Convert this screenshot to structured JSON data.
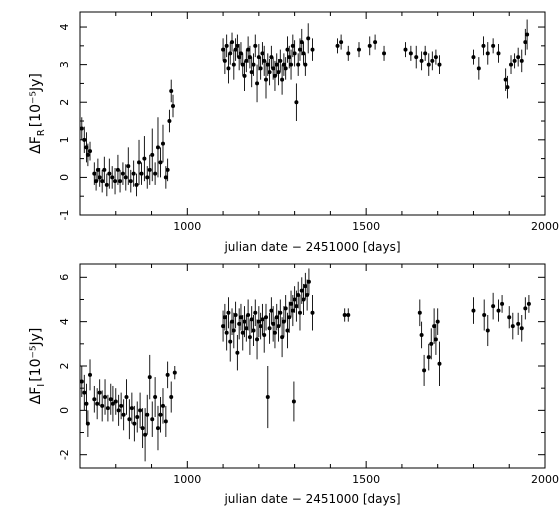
{
  "chart_data": [
    {
      "type": "scatter",
      "ylabel": "ΔF",
      "ylabel_sub": "R",
      "ylabel_unit": "[10⁻⁵Jy]",
      "xlabel": "julian date − 2451000 [days]",
      "xlim": [
        700,
        2000
      ],
      "ylim": [
        -1,
        4.4
      ],
      "xticks": [
        1000,
        1500,
        2000
      ],
      "yticks": [
        -1,
        0,
        1,
        2,
        3,
        4
      ],
      "points": [
        [
          705,
          1.3,
          0.3
        ],
        [
          712,
          1.0,
          0.35
        ],
        [
          718,
          0.8,
          0.4
        ],
        [
          722,
          0.6,
          0.3
        ],
        [
          728,
          0.7,
          0.25
        ],
        [
          740,
          0.1,
          0.3
        ],
        [
          745,
          -0.1,
          0.25
        ],
        [
          750,
          0.2,
          0.3
        ],
        [
          755,
          0.0,
          0.25
        ],
        [
          762,
          -0.1,
          0.3
        ],
        [
          768,
          0.2,
          0.35
        ],
        [
          775,
          -0.2,
          0.3
        ],
        [
          782,
          0.1,
          0.4
        ],
        [
          790,
          0.0,
          0.3
        ],
        [
          798,
          -0.1,
          0.35
        ],
        [
          806,
          0.2,
          0.4
        ],
        [
          812,
          -0.1,
          0.3
        ],
        [
          820,
          0.1,
          0.3
        ],
        [
          828,
          0.0,
          0.35
        ],
        [
          835,
          0.3,
          0.5
        ],
        [
          842,
          -0.1,
          0.3
        ],
        [
          850,
          0.1,
          0.35
        ],
        [
          858,
          -0.2,
          0.3
        ],
        [
          865,
          0.4,
          0.6
        ],
        [
          872,
          0.1,
          0.3
        ],
        [
          880,
          0.5,
          0.6
        ],
        [
          888,
          0.0,
          0.3
        ],
        [
          895,
          0.2,
          0.4
        ],
        [
          902,
          0.6,
          0.7
        ],
        [
          910,
          0.1,
          0.3
        ],
        [
          918,
          0.8,
          0.8
        ],
        [
          925,
          0.4,
          0.4
        ],
        [
          932,
          0.9,
          0.5
        ],
        [
          940,
          0.0,
          0.3
        ],
        [
          945,
          0.2,
          0.3
        ],
        [
          950,
          1.5,
          0.3
        ],
        [
          955,
          2.3,
          0.3
        ],
        [
          960,
          1.9,
          0.3
        ],
        [
          1100,
          3.4,
          0.3
        ],
        [
          1105,
          3.1,
          0.35
        ],
        [
          1110,
          3.5,
          0.3
        ],
        [
          1115,
          2.9,
          0.4
        ],
        [
          1120,
          3.3,
          0.3
        ],
        [
          1125,
          3.6,
          0.25
        ],
        [
          1130,
          3.0,
          0.4
        ],
        [
          1135,
          3.4,
          0.3
        ],
        [
          1140,
          3.5,
          0.3
        ],
        [
          1145,
          3.2,
          0.35
        ],
        [
          1150,
          3.3,
          0.3
        ],
        [
          1155,
          3.0,
          0.3
        ],
        [
          1160,
          2.7,
          0.4
        ],
        [
          1165,
          3.1,
          0.3
        ],
        [
          1170,
          3.4,
          0.35
        ],
        [
          1175,
          3.2,
          0.3
        ],
        [
          1180,
          2.8,
          0.4
        ],
        [
          1185,
          3.0,
          0.3
        ],
        [
          1190,
          3.5,
          0.3
        ],
        [
          1195,
          2.5,
          0.5
        ],
        [
          1200,
          3.2,
          0.35
        ],
        [
          1205,
          2.9,
          0.3
        ],
        [
          1210,
          3.3,
          0.3
        ],
        [
          1215,
          3.1,
          0.4
        ],
        [
          1220,
          2.6,
          0.5
        ],
        [
          1225,
          3.0,
          0.3
        ],
        [
          1230,
          2.8,
          0.35
        ],
        [
          1235,
          3.2,
          0.3
        ],
        [
          1240,
          2.9,
          0.3
        ],
        [
          1245,
          2.7,
          0.4
        ],
        [
          1250,
          3.0,
          0.3
        ],
        [
          1255,
          2.8,
          0.35
        ],
        [
          1260,
          3.1,
          0.3
        ],
        [
          1265,
          2.6,
          0.4
        ],
        [
          1270,
          3.0,
          0.3
        ],
        [
          1275,
          2.9,
          0.3
        ],
        [
          1280,
          3.4,
          0.35
        ],
        [
          1285,
          3.2,
          0.3
        ],
        [
          1290,
          3.0,
          0.4
        ],
        [
          1295,
          3.5,
          0.3
        ],
        [
          1300,
          3.3,
          0.35
        ],
        [
          1305,
          2.0,
          0.5
        ],
        [
          1310,
          3.0,
          0.3
        ],
        [
          1315,
          3.4,
          0.3
        ],
        [
          1320,
          3.6,
          0.35
        ],
        [
          1325,
          3.3,
          0.3
        ],
        [
          1330,
          3.0,
          0.3
        ],
        [
          1338,
          3.7,
          0.4
        ],
        [
          1350,
          3.4,
          0.3
        ],
        [
          1420,
          3.5,
          0.2
        ],
        [
          1430,
          3.6,
          0.2
        ],
        [
          1450,
          3.3,
          0.2
        ],
        [
          1480,
          3.4,
          0.2
        ],
        [
          1510,
          3.5,
          0.25
        ],
        [
          1525,
          3.6,
          0.2
        ],
        [
          1550,
          3.3,
          0.2
        ],
        [
          1610,
          3.4,
          0.2
        ],
        [
          1625,
          3.3,
          0.2
        ],
        [
          1640,
          3.2,
          0.3
        ],
        [
          1655,
          3.1,
          0.25
        ],
        [
          1665,
          3.3,
          0.2
        ],
        [
          1675,
          3.0,
          0.3
        ],
        [
          1685,
          3.1,
          0.25
        ],
        [
          1695,
          3.2,
          0.2
        ],
        [
          1705,
          3.0,
          0.25
        ],
        [
          1800,
          3.2,
          0.2
        ],
        [
          1815,
          2.9,
          0.3
        ],
        [
          1828,
          3.5,
          0.25
        ],
        [
          1840,
          3.3,
          0.3
        ],
        [
          1855,
          3.5,
          0.2
        ],
        [
          1870,
          3.3,
          0.25
        ],
        [
          1890,
          2.6,
          0.3
        ],
        [
          1895,
          2.4,
          0.3
        ],
        [
          1905,
          3.0,
          0.25
        ],
        [
          1915,
          3.1,
          0.2
        ],
        [
          1925,
          3.2,
          0.25
        ],
        [
          1935,
          3.1,
          0.3
        ],
        [
          1945,
          3.6,
          0.35
        ],
        [
          1950,
          3.8,
          0.4
        ]
      ]
    },
    {
      "type": "scatter",
      "ylabel": "ΔF",
      "ylabel_sub": "I",
      "ylabel_unit": "[10⁻⁵Jy]",
      "xlabel": "julian date − 2451000 [days]",
      "xlim": [
        700,
        2000
      ],
      "ylim": [
        -2.6,
        6.6
      ],
      "xticks": [
        1000,
        1500,
        2000
      ],
      "yticks": [
        -2,
        0,
        2,
        4,
        6
      ],
      "points": [
        [
          705,
          1.3,
          0.7
        ],
        [
          712,
          0.8,
          0.8
        ],
        [
          718,
          0.3,
          0.9
        ],
        [
          722,
          -0.6,
          0.6
        ],
        [
          728,
          1.6,
          0.7
        ],
        [
          740,
          0.5,
          0.6
        ],
        [
          748,
          0.3,
          0.7
        ],
        [
          755,
          0.8,
          0.6
        ],
        [
          762,
          0.2,
          0.7
        ],
        [
          770,
          0.6,
          0.8
        ],
        [
          778,
          0.1,
          0.6
        ],
        [
          786,
          0.5,
          0.7
        ],
        [
          792,
          0.3,
          0.8
        ],
        [
          800,
          0.4,
          0.6
        ],
        [
          808,
          0.0,
          0.7
        ],
        [
          815,
          0.2,
          0.6
        ],
        [
          822,
          -0.2,
          0.7
        ],
        [
          830,
          0.6,
          0.8
        ],
        [
          838,
          -0.4,
          0.9
        ],
        [
          845,
          0.1,
          0.7
        ],
        [
          852,
          -0.6,
          0.8
        ],
        [
          860,
          -0.3,
          0.7
        ],
        [
          868,
          0.0,
          0.8
        ],
        [
          875,
          -0.8,
          0.9
        ],
        [
          882,
          -1.1,
          1.2
        ],
        [
          888,
          -0.2,
          0.9
        ],
        [
          895,
          1.5,
          1.0
        ],
        [
          902,
          -0.4,
          0.8
        ],
        [
          910,
          0.6,
          0.9
        ],
        [
          918,
          -0.8,
          1.0
        ],
        [
          925,
          -0.2,
          0.8
        ],
        [
          932,
          0.2,
          0.8
        ],
        [
          940,
          -0.5,
          0.7
        ],
        [
          945,
          1.6,
          0.6
        ],
        [
          955,
          0.6,
          0.7
        ],
        [
          965,
          1.7,
          0.3
        ],
        [
          1100,
          3.8,
          0.7
        ],
        [
          1105,
          4.2,
          0.6
        ],
        [
          1110,
          3.5,
          0.8
        ],
        [
          1115,
          4.4,
          0.7
        ],
        [
          1120,
          3.1,
          0.9
        ],
        [
          1125,
          4.0,
          0.6
        ],
        [
          1130,
          3.6,
          0.8
        ],
        [
          1135,
          4.3,
          0.6
        ],
        [
          1140,
          2.6,
          0.8
        ],
        [
          1145,
          3.9,
          0.7
        ],
        [
          1150,
          4.2,
          0.6
        ],
        [
          1155,
          3.5,
          0.8
        ],
        [
          1160,
          4.0,
          0.7
        ],
        [
          1165,
          3.7,
          0.6
        ],
        [
          1170,
          4.3,
          0.7
        ],
        [
          1175,
          3.3,
          0.8
        ],
        [
          1180,
          4.1,
          0.6
        ],
        [
          1185,
          3.6,
          0.7
        ],
        [
          1190,
          4.4,
          0.6
        ],
        [
          1195,
          3.2,
          0.9
        ],
        [
          1200,
          4.0,
          0.7
        ],
        [
          1205,
          3.8,
          0.6
        ],
        [
          1210,
          4.1,
          0.7
        ],
        [
          1215,
          3.4,
          0.8
        ],
        [
          1220,
          4.2,
          0.6
        ],
        [
          1225,
          0.6,
          1.4
        ],
        [
          1230,
          3.7,
          0.7
        ],
        [
          1235,
          4.5,
          0.6
        ],
        [
          1240,
          3.9,
          0.8
        ],
        [
          1245,
          3.5,
          0.7
        ],
        [
          1250,
          4.2,
          0.6
        ],
        [
          1255,
          3.8,
          0.7
        ],
        [
          1260,
          4.4,
          0.6
        ],
        [
          1265,
          3.3,
          0.9
        ],
        [
          1270,
          4.0,
          0.7
        ],
        [
          1275,
          4.6,
          0.6
        ],
        [
          1280,
          3.6,
          0.8
        ],
        [
          1285,
          4.2,
          0.7
        ],
        [
          1290,
          4.8,
          0.6
        ],
        [
          1295,
          4.5,
          0.7
        ],
        [
          1298,
          0.4,
          0.9
        ],
        [
          1300,
          5.0,
          0.6
        ],
        [
          1305,
          4.7,
          0.7
        ],
        [
          1310,
          5.2,
          0.6
        ],
        [
          1315,
          4.4,
          0.8
        ],
        [
          1320,
          5.4,
          0.6
        ],
        [
          1325,
          5.0,
          0.7
        ],
        [
          1330,
          5.6,
          0.6
        ],
        [
          1335,
          5.2,
          0.7
        ],
        [
          1340,
          5.8,
          0.6
        ],
        [
          1350,
          4.4,
          0.8
        ],
        [
          1440,
          4.3,
          0.3
        ],
        [
          1450,
          4.3,
          0.3
        ],
        [
          1650,
          4.4,
          0.6
        ],
        [
          1655,
          3.4,
          0.6
        ],
        [
          1662,
          1.8,
          0.7
        ],
        [
          1675,
          2.4,
          0.6
        ],
        [
          1682,
          3.0,
          0.7
        ],
        [
          1690,
          3.8,
          0.8
        ],
        [
          1695,
          3.2,
          0.7
        ],
        [
          1700,
          4.0,
          0.6
        ],
        [
          1705,
          2.1,
          1.0
        ],
        [
          1800,
          4.5,
          0.6
        ],
        [
          1830,
          4.3,
          0.7
        ],
        [
          1840,
          3.6,
          0.7
        ],
        [
          1855,
          4.7,
          0.6
        ],
        [
          1870,
          4.5,
          0.5
        ],
        [
          1880,
          4.8,
          0.4
        ],
        [
          1900,
          4.2,
          0.5
        ],
        [
          1910,
          3.8,
          0.6
        ],
        [
          1925,
          3.9,
          0.5
        ],
        [
          1935,
          3.7,
          0.6
        ],
        [
          1945,
          4.6,
          0.5
        ],
        [
          1955,
          4.8,
          0.4
        ]
      ]
    }
  ]
}
